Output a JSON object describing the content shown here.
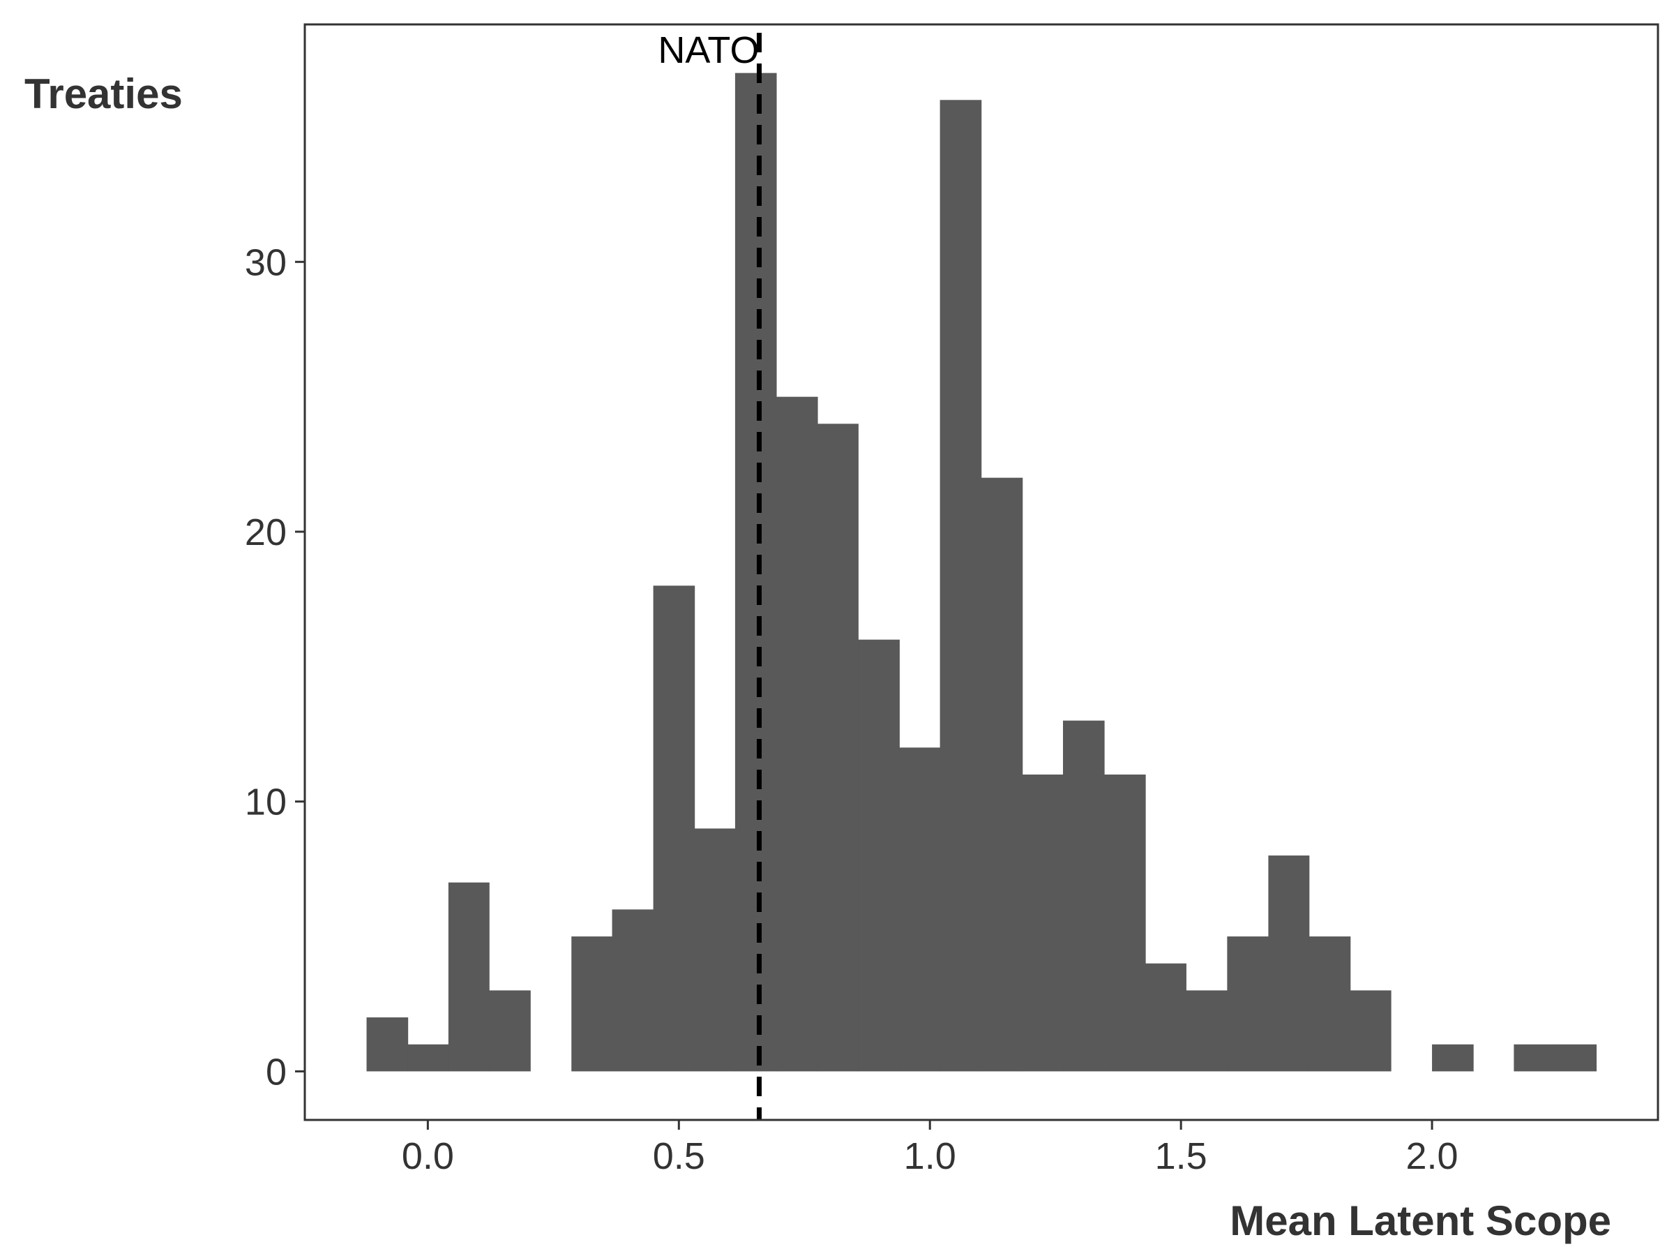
{
  "chart_data": {
    "type": "bar",
    "subtype": "histogram",
    "xlabel": "Mean Latent Scope",
    "ylabel": "Treaties",
    "xlim": [
      -0.245,
      2.45
    ],
    "ylim": [
      -1.8,
      38.8
    ],
    "xticks": [
      0.0,
      0.5,
      1.0,
      1.5,
      2.0
    ],
    "xtick_labels": [
      "0.0",
      "0.5",
      "1.0",
      "1.5",
      "2.0"
    ],
    "yticks": [
      0,
      10,
      20,
      30
    ],
    "ytick_labels": [
      "0",
      "10",
      "20",
      "30"
    ],
    "grid": false,
    "bin_edges": [
      -0.122,
      -0.04,
      0.041,
      0.122,
      0.204,
      0.286,
      0.367,
      0.449,
      0.531,
      0.612,
      0.694,
      0.776,
      0.857,
      0.939,
      1.02,
      1.102,
      1.184,
      1.265,
      1.347,
      1.429,
      1.51,
      1.592,
      1.674,
      1.755,
      1.837,
      1.918,
      2.0,
      2.082,
      2.163,
      2.245,
      2.327
    ],
    "counts": [
      2,
      1,
      7,
      3,
      0,
      5,
      6,
      18,
      9,
      37,
      25,
      24,
      16,
      12,
      36,
      22,
      11,
      13,
      11,
      4,
      3,
      5,
      8,
      5,
      3,
      0,
      1,
      0,
      1,
      1
    ],
    "bar_color": "#595959",
    "reference_line": {
      "x": 0.66,
      "label": "NATO",
      "style": "dashed",
      "color": "#000000"
    }
  }
}
